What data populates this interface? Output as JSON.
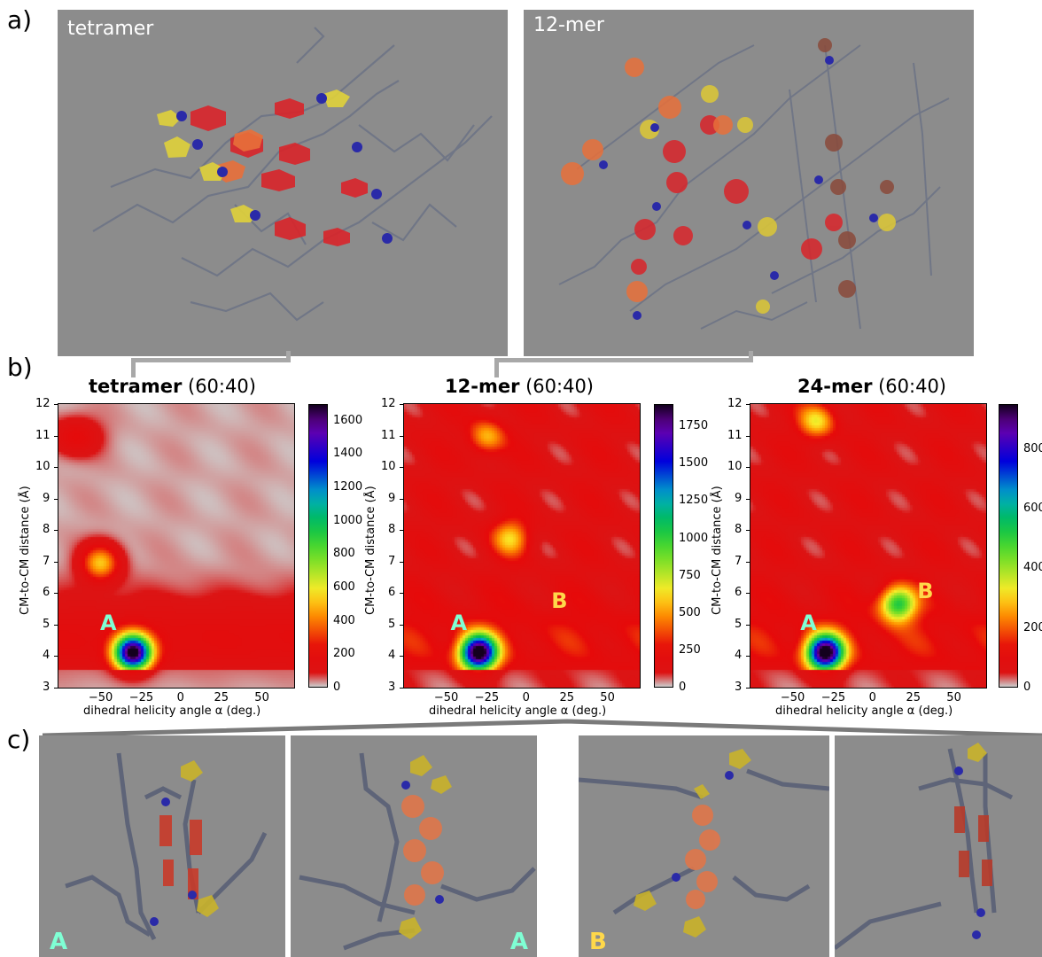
{
  "panels": {
    "a": "a)",
    "b": "b)",
    "c": "c)"
  },
  "snapshots_a": [
    {
      "label": "tetramer"
    },
    {
      "label": "12-mer"
    }
  ],
  "snapshots_c": [
    {
      "tag": "A",
      "tag_color": "#7fffd4"
    },
    {
      "tag": "A",
      "tag_color": "#7fffd4"
    },
    {
      "tag": "B",
      "tag_color": "#ffd84a"
    },
    {
      "tag": ""
    }
  ],
  "chart_data": [
    {
      "type": "heatmap",
      "title_bold": "tetramer",
      "title_rest": "(60:40)",
      "xlabel": "dihedral helicity angle α (deg.)",
      "ylabel": "CM-to-CM distance (Å)",
      "xlim": [
        -75,
        70
      ],
      "ylim": [
        3,
        12
      ],
      "x_ticks": [
        "−50",
        "−25",
        "0",
        "25",
        "50"
      ],
      "x_tick_values": [
        -50,
        -25,
        0,
        25,
        50
      ],
      "y_ticks": [
        "3",
        "4",
        "5",
        "6",
        "7",
        "8",
        "9",
        "10",
        "11",
        "12"
      ],
      "colorbar": {
        "min": 0,
        "max": 1700,
        "ticks": [
          "0",
          "200",
          "400",
          "600",
          "800",
          "1000",
          "1200",
          "1400",
          "1600"
        ],
        "tick_values": [
          0,
          200,
          400,
          600,
          800,
          1000,
          1200,
          1400,
          1600
        ]
      },
      "peaks": [
        {
          "label": "A",
          "x": -30,
          "y": 4.15,
          "color": "#7fffd4",
          "label_x": -45,
          "label_y": 5.0
        }
      ],
      "density_regions": [
        {
          "x": -30,
          "y": 4.15,
          "value": 1650
        },
        {
          "x": -50,
          "y": 7.0,
          "value": 500
        },
        {
          "x": -65,
          "y": 11.0,
          "value": 200
        }
      ]
    },
    {
      "type": "heatmap",
      "title_bold": "12-mer",
      "title_rest": "(60:40)",
      "xlabel": "dihedral helicity angle α (deg.)",
      "ylabel": "CM-to-CM distance (Å)",
      "xlim": [
        -75,
        70
      ],
      "ylim": [
        3,
        12
      ],
      "x_ticks": [
        "−50",
        "−25",
        "0",
        "25",
        "50"
      ],
      "x_tick_values": [
        -50,
        -25,
        0,
        25,
        50
      ],
      "y_ticks": [
        "3",
        "4",
        "5",
        "6",
        "7",
        "8",
        "9",
        "10",
        "11",
        "12"
      ],
      "colorbar": {
        "min": 0,
        "max": 1900,
        "ticks": [
          "0",
          "250",
          "500",
          "750",
          "1000",
          "1250",
          "1500",
          "1750"
        ],
        "tick_values": [
          0,
          250,
          500,
          750,
          1000,
          1250,
          1500,
          1750
        ]
      },
      "peaks": [
        {
          "label": "A",
          "x": -30,
          "y": 4.15,
          "color": "#7fffd4",
          "label_x": -42,
          "label_y": 5.0
        },
        {
          "label": "B",
          "x": 5,
          "y": 5.3,
          "color": "#ffd84a",
          "label_x": 20,
          "label_y": 5.7
        }
      ],
      "density_regions": [
        {
          "x": -30,
          "y": 4.15,
          "value": 1850
        },
        {
          "x": -10,
          "y": 7.8,
          "value": 450
        },
        {
          "x": -25,
          "y": 11.0,
          "value": 420
        }
      ]
    },
    {
      "type": "heatmap",
      "title_bold": "24-mer",
      "title_rest": "(60:40)",
      "xlabel": "dihedral helicity angle α (deg.)",
      "ylabel": "CM-to-CM distance (Å)",
      "xlim": [
        -75,
        70
      ],
      "ylim": [
        3,
        12
      ],
      "x_ticks": [
        "−50",
        "−25",
        "0",
        "25",
        "50"
      ],
      "x_tick_values": [
        -50,
        -25,
        0,
        25,
        50
      ],
      "y_ticks": [
        "3",
        "4",
        "5",
        "6",
        "7",
        "8",
        "9",
        "10",
        "11",
        "12"
      ],
      "colorbar": {
        "min": 0,
        "max": 950,
        "ticks": [
          "0",
          "200",
          "400",
          "600",
          "800"
        ],
        "tick_values": [
          0,
          200,
          400,
          600,
          800
        ]
      },
      "peaks": [
        {
          "label": "A",
          "x": -30,
          "y": 4.15,
          "color": "#7fffd4",
          "label_x": -40,
          "label_y": 5.0
        },
        {
          "label": "B",
          "x": 15,
          "y": 5.7,
          "color": "#ffd84a",
          "label_x": 32,
          "label_y": 6.0
        }
      ],
      "density_regions": [
        {
          "x": -30,
          "y": 4.15,
          "value": 920
        },
        {
          "x": 15,
          "y": 5.7,
          "value": 450
        },
        {
          "x": -35,
          "y": 11.5,
          "value": 250
        }
      ]
    }
  ]
}
